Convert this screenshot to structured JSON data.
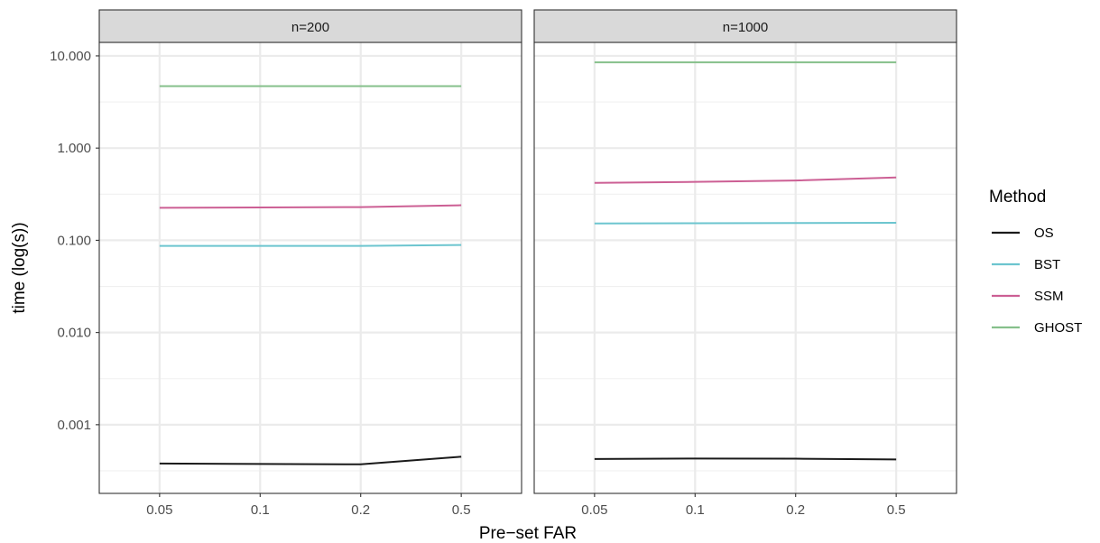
{
  "chart_data": {
    "type": "line",
    "facet_by": "n",
    "panels": [
      {
        "label": "n=200",
        "series": [
          {
            "name": "OS",
            "values": [
              0.00038,
              0.000375,
              0.000372,
              0.00045
            ]
          },
          {
            "name": "BST",
            "values": [
              0.087,
              0.087,
              0.087,
              0.089
            ]
          },
          {
            "name": "SSM",
            "values": [
              0.225,
              0.227,
              0.229,
              0.24
            ]
          },
          {
            "name": "GHOST",
            "values": [
              4.7,
              4.7,
              4.7,
              4.7
            ]
          }
        ]
      },
      {
        "label": "n=1000",
        "series": [
          {
            "name": "OS",
            "values": [
              0.000425,
              0.00043,
              0.000428,
              0.00042
            ]
          },
          {
            "name": "BST",
            "values": [
              0.152,
              0.153,
              0.154,
              0.155
            ]
          },
          {
            "name": "SSM",
            "values": [
              0.42,
              0.43,
              0.445,
              0.48
            ]
          },
          {
            "name": "GHOST",
            "values": [
              8.5,
              8.5,
              8.5,
              8.5
            ]
          }
        ]
      }
    ],
    "categories": [
      "0.05",
      "0.1",
      "0.2",
      "0.5"
    ],
    "xlabel": "Pre−set FAR",
    "ylabel": "time (log(s))",
    "yscale": "log10",
    "ylim": [
      0.00018,
      14
    ],
    "yticks": [
      0.001,
      0.01,
      0.1,
      1,
      10
    ],
    "ytick_labels": [
      "0.001",
      "0.010",
      "0.100",
      "1.000",
      "10.000"
    ],
    "grid": true,
    "legend": {
      "title": "Method",
      "position": "right",
      "entries": [
        "OS",
        "BST",
        "SSM",
        "GHOST"
      ]
    },
    "colors": {
      "OS": "#1a1a1a",
      "BST": "#6cc5cf",
      "SSM": "#cc5f94",
      "GHOST": "#86c08b"
    }
  }
}
